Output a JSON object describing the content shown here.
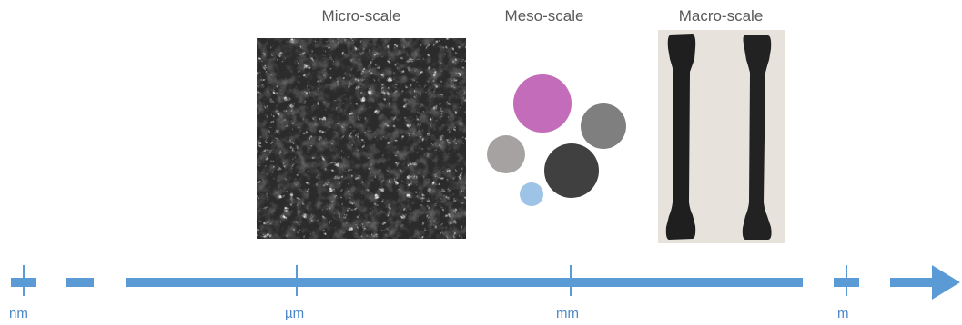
{
  "titles": {
    "micro": "Micro-scale",
    "meso": "Meso-scale",
    "macro": "Macro-scale"
  },
  "axis": {
    "labels": [
      "nm",
      "µm",
      "mm",
      "m"
    ],
    "color": "#5b9bd5"
  },
  "meso_particles": [
    {
      "name": "magenta-particle",
      "color": "#c36cb9"
    },
    {
      "name": "gray-particle",
      "color": "#7f7f7f"
    },
    {
      "name": "light-gray-particle",
      "color": "#a6a2a2"
    },
    {
      "name": "dark-particle",
      "color": "#404040"
    },
    {
      "name": "light-blue-particle",
      "color": "#9dc3e6"
    }
  ],
  "images": {
    "micro": "sem-micrograph",
    "macro": "tensile-specimens-photo"
  }
}
